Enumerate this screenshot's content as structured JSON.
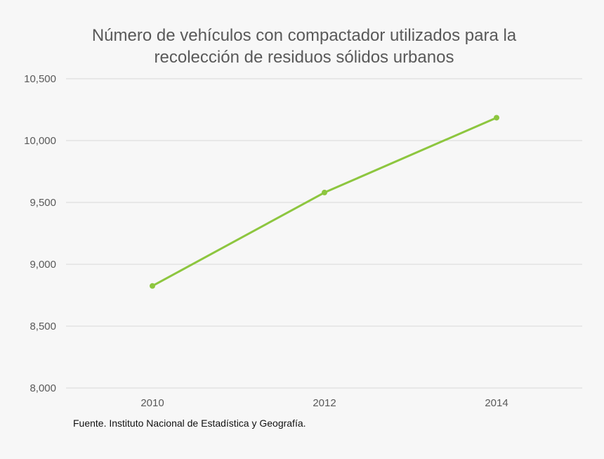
{
  "colors": {
    "background": "#f7f7f7",
    "series": "#8dc63f",
    "gridline": "#d9d9d9",
    "text": "#595959"
  },
  "chart_data": {
    "type": "line",
    "title_lines": [
      "Número de vehículos con compactador utilizados para la",
      "recolección de residuos sólidos urbanos"
    ],
    "categories": [
      "2010",
      "2012",
      "2014"
    ],
    "series": [
      {
        "values": [
          8825,
          9580,
          10185
        ]
      }
    ],
    "ylim": [
      8000,
      10500
    ],
    "yticks": [
      8000,
      8500,
      9000,
      9500,
      10000,
      10500
    ],
    "ytick_labels": [
      "8,000",
      "8,500",
      "9,000",
      "9,500",
      "10,000",
      "10,500"
    ],
    "grid": true,
    "legend": "none",
    "source": "Fuente. Instituto Nacional de Estadística y Geografía."
  }
}
